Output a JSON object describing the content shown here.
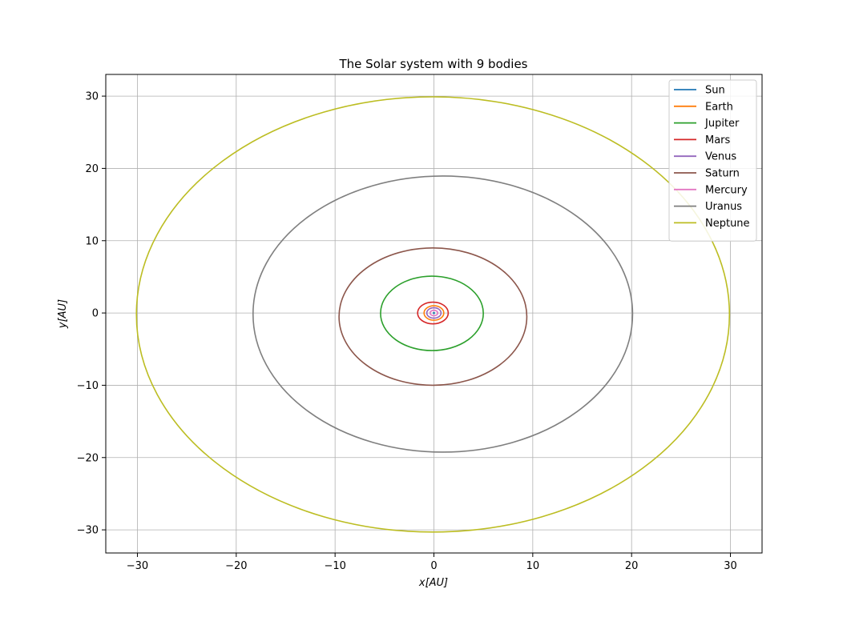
{
  "chart_data": {
    "type": "line",
    "title": "The Solar system with 9 bodies",
    "xlabel": "x[AU]",
    "ylabel": "y[AU]",
    "xlim": [
      -33.2,
      33.2
    ],
    "ylim": [
      -33.2,
      33
    ],
    "xticks": [
      -30,
      -20,
      -10,
      0,
      10,
      20,
      30
    ],
    "yticks": [
      -30,
      -20,
      -10,
      0,
      10,
      20,
      30
    ],
    "xtick_labels": [
      "−30",
      "−20",
      "−10",
      "0",
      "10",
      "20",
      "30"
    ],
    "ytick_labels": [
      "−30",
      "−20",
      "−10",
      "0",
      "10",
      "20",
      "30"
    ],
    "grid": true,
    "legend_position": "top-right",
    "series": [
      {
        "name": "Sun",
        "color": "#1f77b4",
        "orbit": {
          "cx": 0.0,
          "cy": 0.0,
          "rx": 0.02,
          "ry": 0.02
        }
      },
      {
        "name": "Earth",
        "color": "#ff7f0e",
        "orbit": {
          "cx": 0.0,
          "cy": 0.0,
          "rx": 1.0,
          "ry": 1.0
        }
      },
      {
        "name": "Jupiter",
        "color": "#2ca02c",
        "orbit": {
          "cx": -0.2,
          "cy": -0.05,
          "rx": 5.2,
          "ry": 5.15
        }
      },
      {
        "name": "Mars",
        "color": "#d62728",
        "orbit": {
          "cx": -0.1,
          "cy": 0.0,
          "rx": 1.55,
          "ry": 1.5
        }
      },
      {
        "name": "Venus",
        "color": "#9467bd",
        "orbit": {
          "cx": 0.0,
          "cy": 0.0,
          "rx": 0.72,
          "ry": 0.72
        }
      },
      {
        "name": "Saturn",
        "color": "#8c564b",
        "orbit": {
          "cx": -0.1,
          "cy": -0.5,
          "rx": 9.5,
          "ry": 9.5
        }
      },
      {
        "name": "Mercury",
        "color": "#e377c2",
        "orbit": {
          "cx": 0.0,
          "cy": 0.0,
          "rx": 0.39,
          "ry": 0.38
        }
      },
      {
        "name": "Uranus",
        "color": "#7f7f7f",
        "orbit": {
          "cx": 0.9,
          "cy": -0.15,
          "rx": 19.2,
          "ry": 19.1
        }
      },
      {
        "name": "Neptune",
        "color": "#bcbd22",
        "orbit": {
          "cx": -0.1,
          "cy": -0.2,
          "rx": 30.0,
          "ry": 30.1
        }
      }
    ]
  }
}
